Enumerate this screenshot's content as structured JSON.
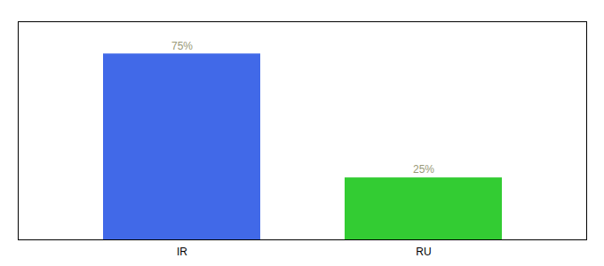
{
  "chart_data": {
    "type": "bar",
    "categories": [
      "IR",
      "RU"
    ],
    "values": [
      75,
      25
    ],
    "value_labels": [
      "75%",
      "25%"
    ],
    "colors": [
      "#4169E8",
      "#33CC33"
    ],
    "ylim": [
      0,
      88
    ],
    "data_labels": true,
    "tick_labels": "x",
    "grid": false
  }
}
